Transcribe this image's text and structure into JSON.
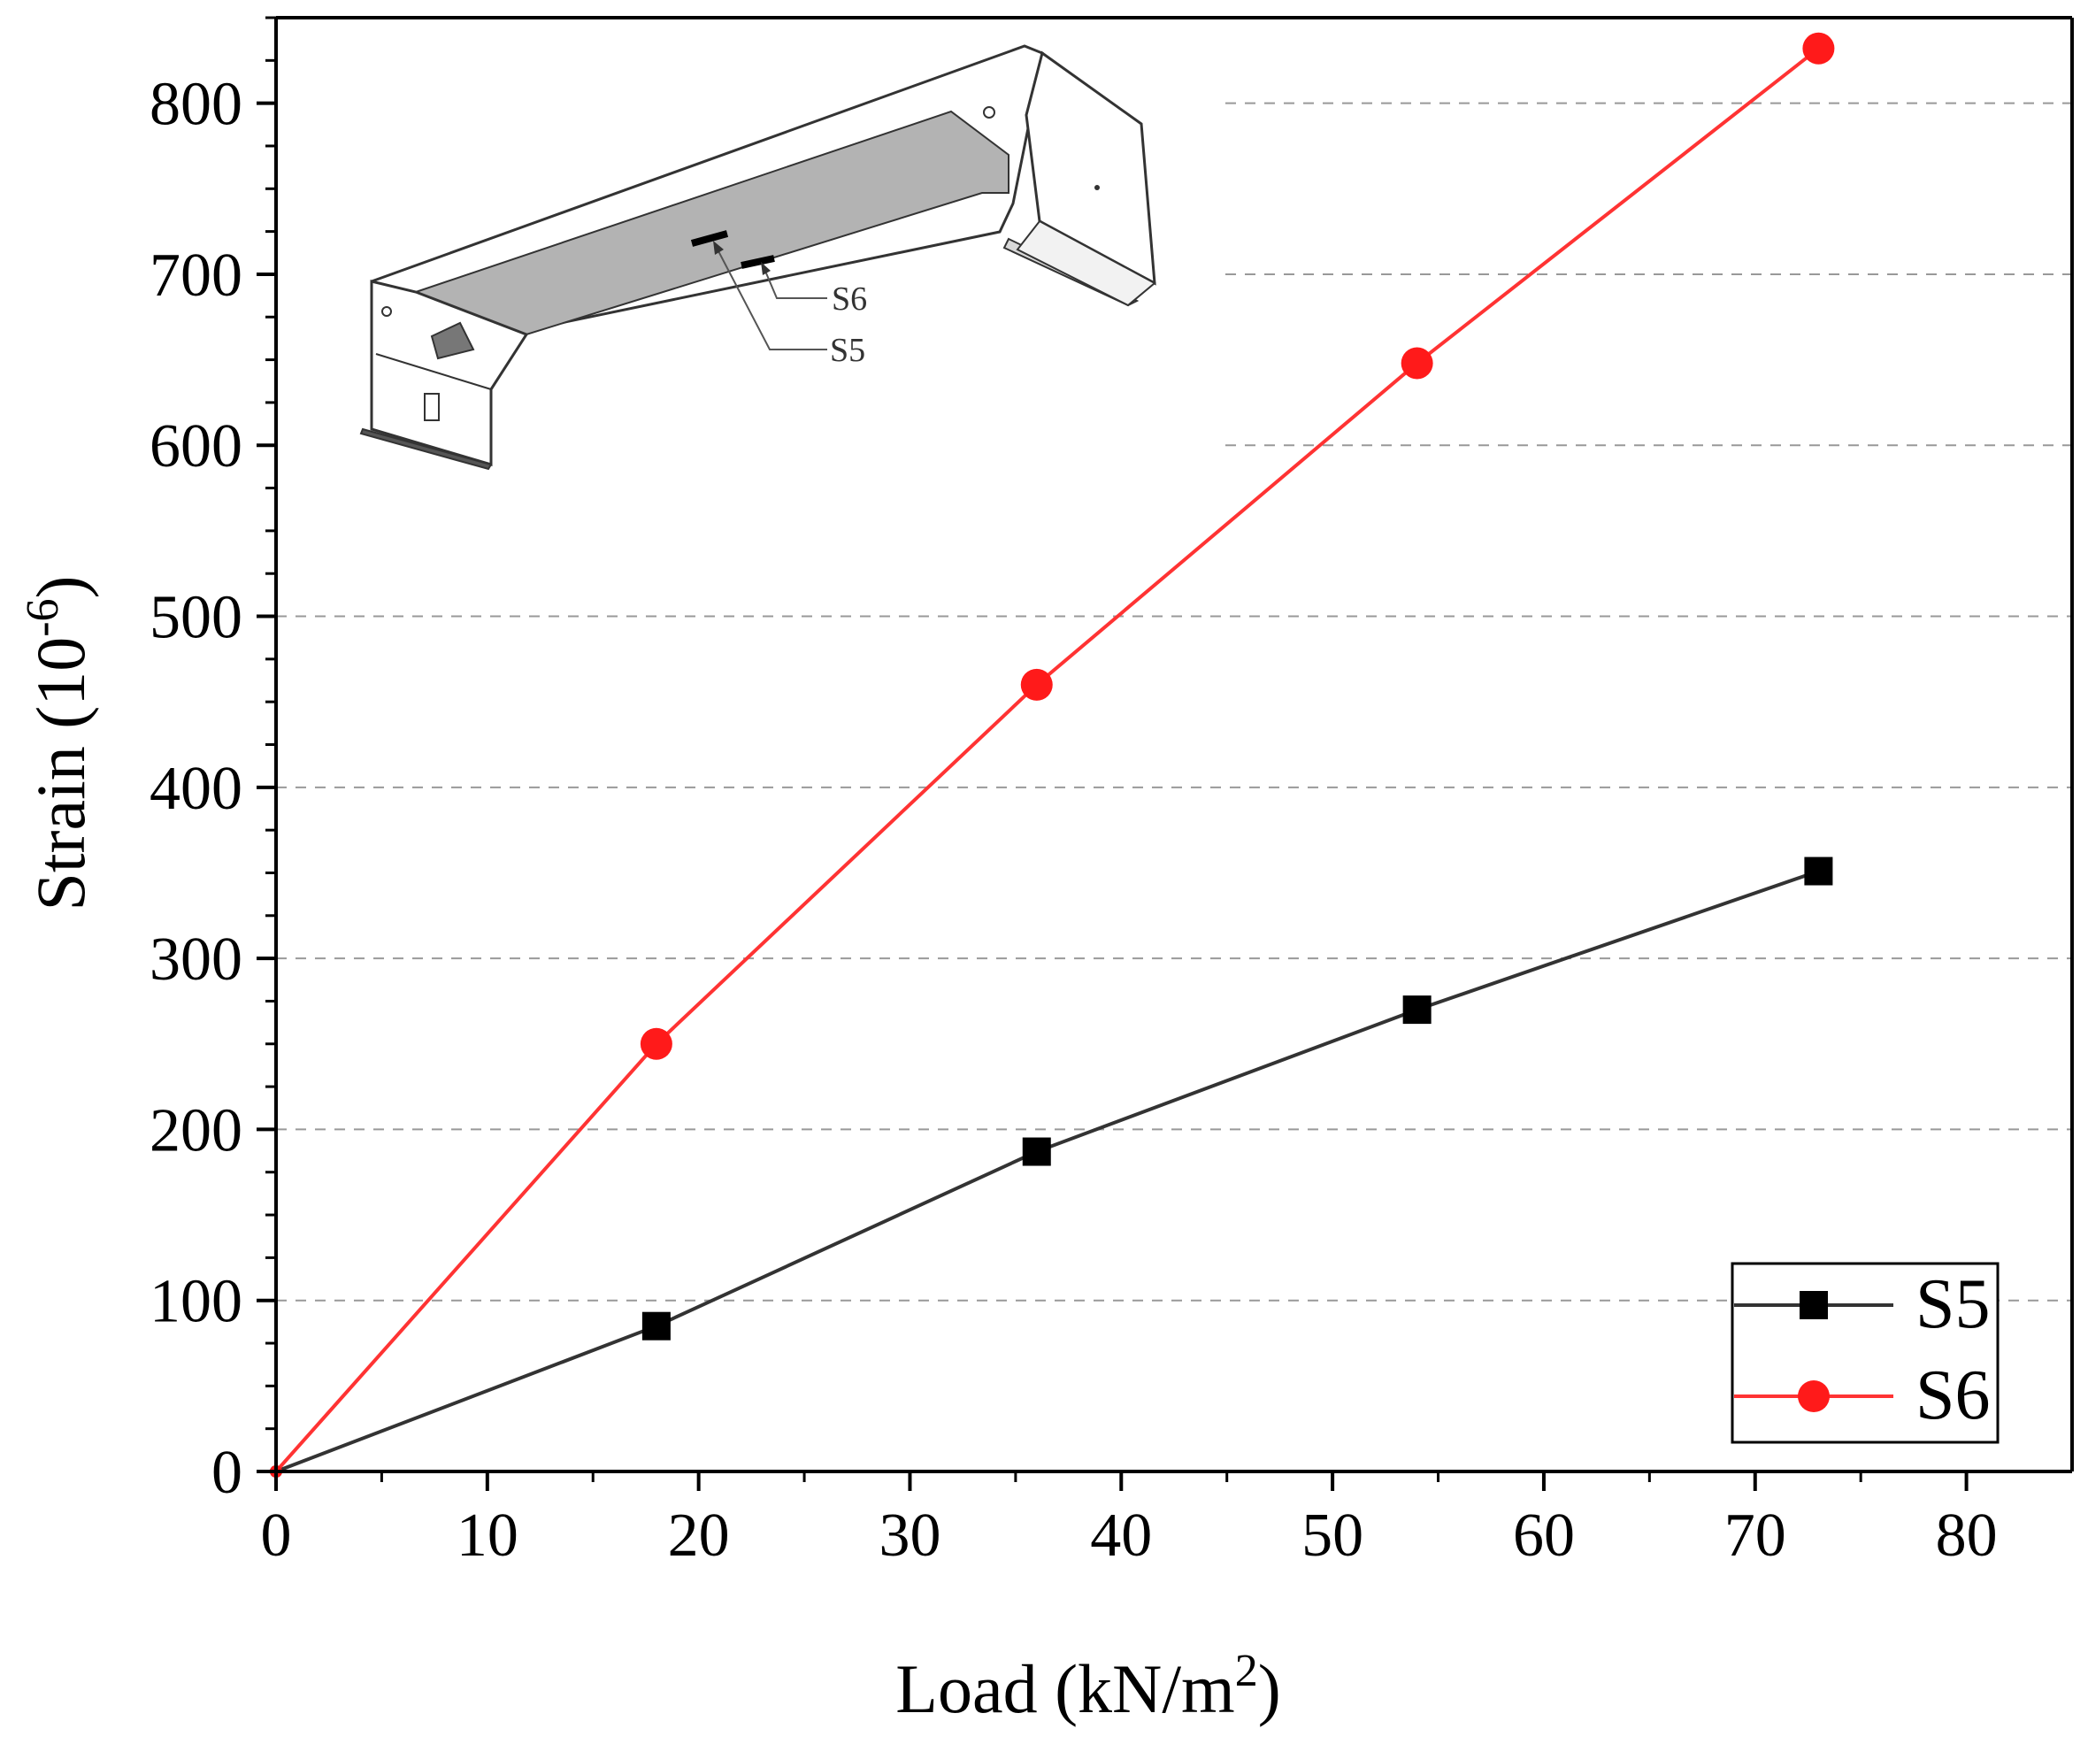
{
  "chart_data": {
    "type": "line",
    "xlabel": "Load (kN/m",
    "xlabel_sup": "2",
    "xlabel_tail": ")",
    "ylabel": "Strain (10",
    "ylabel_sup": "-6",
    "ylabel_tail": ")",
    "xlim": [
      0,
      85
    ],
    "ylim": [
      0,
      850
    ],
    "xticks": [
      0,
      10,
      20,
      30,
      40,
      50,
      60,
      70,
      80
    ],
    "yticks": [
      0,
      100,
      200,
      300,
      400,
      500,
      600,
      700,
      800
    ],
    "grid": "horizontal dashed",
    "legend_position": "bottom-right",
    "series": [
      {
        "name": "S5",
        "color": "#000000",
        "line_color": "#333333",
        "marker": "square",
        "x": [
          0,
          18,
          36,
          54,
          73
        ],
        "y": [
          0,
          85,
          187,
          270,
          351
        ]
      },
      {
        "name": "S6",
        "color": "#ff1a1a",
        "line_color": "#ff3333",
        "marker": "circle",
        "x": [
          0,
          18,
          36,
          54,
          73
        ],
        "y": [
          0,
          250,
          460,
          648,
          832
        ]
      }
    ],
    "inset": {
      "labels": [
        "S6",
        "S5"
      ],
      "icon": "steel-bracket-diagram"
    }
  }
}
